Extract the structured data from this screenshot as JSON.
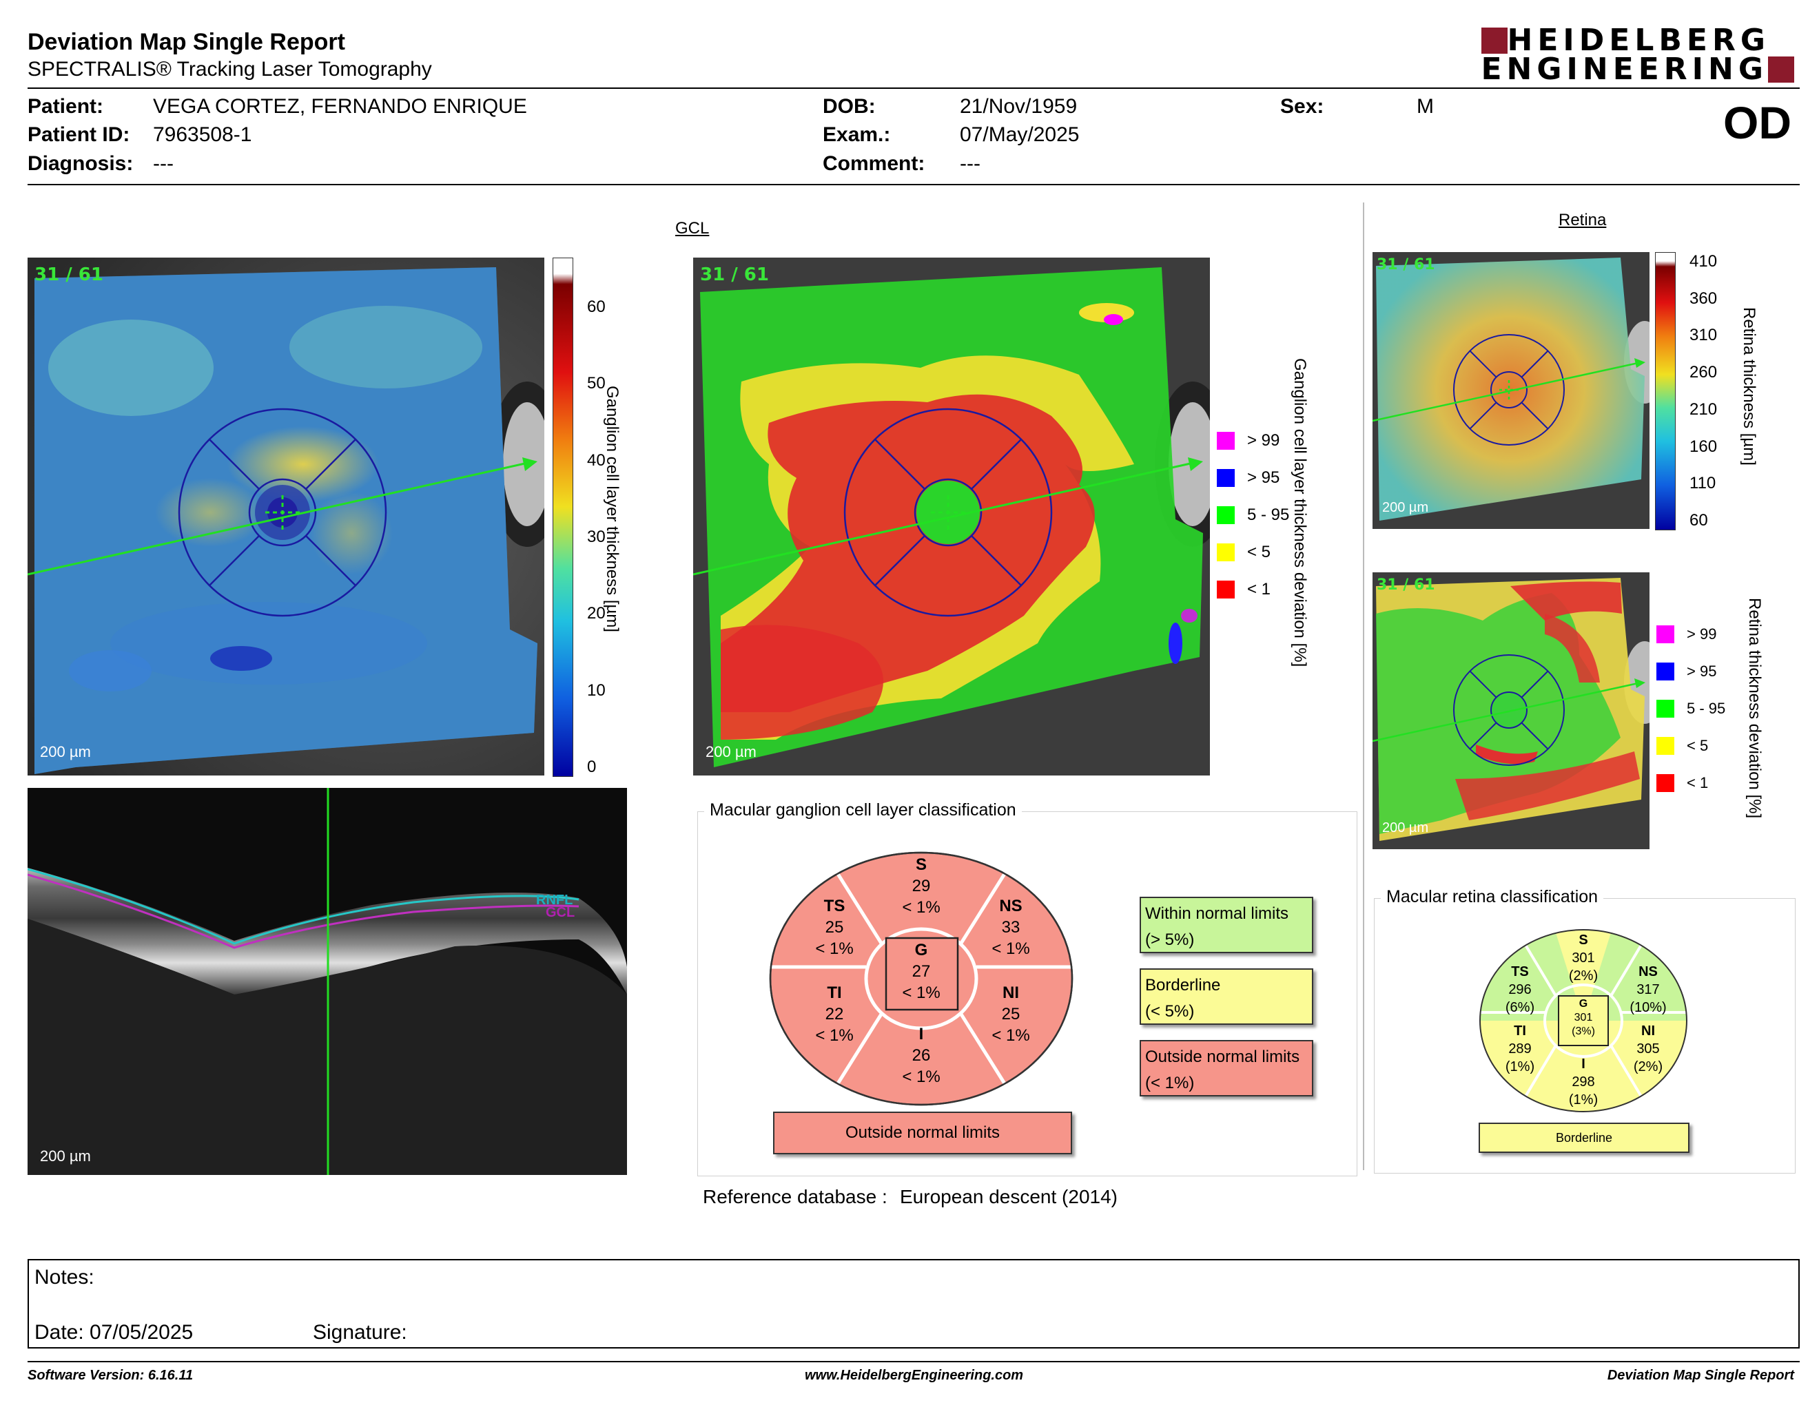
{
  "header": {
    "title": "Deviation Map Single Report",
    "subtitle": "SPECTRALIS® Tracking Laser Tomography",
    "logo_line1": "HEIDELBERG",
    "logo_line2": "ENGINEERING",
    "eye": "OD"
  },
  "patient": {
    "patient_label": "Patient:",
    "patient_value": "VEGA CORTEZ, FERNANDO ENRIQUE",
    "id_label": "Patient ID:",
    "id_value": "7963508-1",
    "diagnosis_label": "Diagnosis:",
    "diagnosis_value": "---",
    "dob_label": "DOB:",
    "dob_value": "21/Nov/1959",
    "exam_label": "Exam.:",
    "exam_value": "07/May/2025",
    "comment_label": "Comment:",
    "comment_value": "---",
    "sex_label": "Sex:",
    "sex_value": "M"
  },
  "gcl": {
    "section_label": "GCL",
    "scan_index": "31 / 61",
    "scale": "200 µm",
    "thickness_label": "Ganglion cell layer thickness [µm]",
    "thickness_ticks": [
      "60",
      "50",
      "40",
      "30",
      "20",
      "10",
      "0"
    ],
    "deviation_label": "Ganglion cell layer thickness deviation [%]"
  },
  "retina": {
    "section_label": "Retina",
    "scan_index": "31 / 61",
    "scale": "200 µm",
    "thickness_label": "Retina thickness [µm]",
    "thickness_ticks": [
      "410",
      "360",
      "310",
      "260",
      "210",
      "160",
      "110",
      "60"
    ],
    "deviation_label": "Retina thickness deviation [%]"
  },
  "legend": [
    {
      "label": "> 99",
      "color": "#ff00ff"
    },
    {
      "label": "> 95",
      "color": "#0000ff"
    },
    {
      "label": "5 - 95",
      "color": "#00ff00"
    },
    {
      "label": "< 5",
      "color": "#ffff00"
    },
    {
      "label": "< 1",
      "color": "#ff0000"
    }
  ],
  "bscan": {
    "scale": "200 µm",
    "rnfl": "RNFL",
    "gcl": "GCL"
  },
  "macular_gcl": {
    "title": "Macular ganglion cell layer classification",
    "sectors": {
      "S": {
        "name": "S",
        "value": "29",
        "pct": "< 1%"
      },
      "TS": {
        "name": "TS",
        "value": "25",
        "pct": "< 1%"
      },
      "NS": {
        "name": "NS",
        "value": "33",
        "pct": "< 1%"
      },
      "G": {
        "name": "G",
        "value": "27",
        "pct": "< 1%"
      },
      "TI": {
        "name": "TI",
        "value": "22",
        "pct": "< 1%"
      },
      "NI": {
        "name": "NI",
        "value": "25",
        "pct": "< 1%"
      },
      "I": {
        "name": "I",
        "value": "26",
        "pct": "< 1%"
      }
    },
    "result": "Outside normal limits",
    "key": [
      {
        "line1": "Within normal limits",
        "line2": "(> 5%)",
        "color": "#c8f59a"
      },
      {
        "line1": "Borderline",
        "line2": "(< 5%)",
        "color": "#fbfb96"
      },
      {
        "line1": "Outside normal limits",
        "line2": "(< 1%)",
        "color": "#f6958a"
      }
    ],
    "reference_label": "Reference database :",
    "reference_value": "European descent (2014)"
  },
  "macular_retina": {
    "title": "Macular retina classification",
    "sectors": {
      "S": {
        "name": "S",
        "value": "301",
        "pct": "(2%)"
      },
      "TS": {
        "name": "TS",
        "value": "296",
        "pct": "(6%)"
      },
      "NS": {
        "name": "NS",
        "value": "317",
        "pct": "(10%)"
      },
      "G": {
        "name": "G",
        "value": "301",
        "pct": "(3%)"
      },
      "TI": {
        "name": "TI",
        "value": "289",
        "pct": "(1%)"
      },
      "NI": {
        "name": "NI",
        "value": "305",
        "pct": "(2%)"
      },
      "I": {
        "name": "I",
        "value": "298",
        "pct": "(1%)"
      }
    },
    "result": "Borderline"
  },
  "colors": {
    "outside": "#f6958a",
    "borderline": "#fbfb96",
    "within": "#c8f59a",
    "logo": "#8b1a2b"
  },
  "notes": {
    "notes_label": "Notes:",
    "date_label": "Date: 07/05/2025",
    "signature_label": "Signature:"
  },
  "footer": {
    "software": "Software Version: 6.16.11",
    "website": "www.HeidelbergEngineering.com",
    "report": "Deviation Map Single Report"
  }
}
